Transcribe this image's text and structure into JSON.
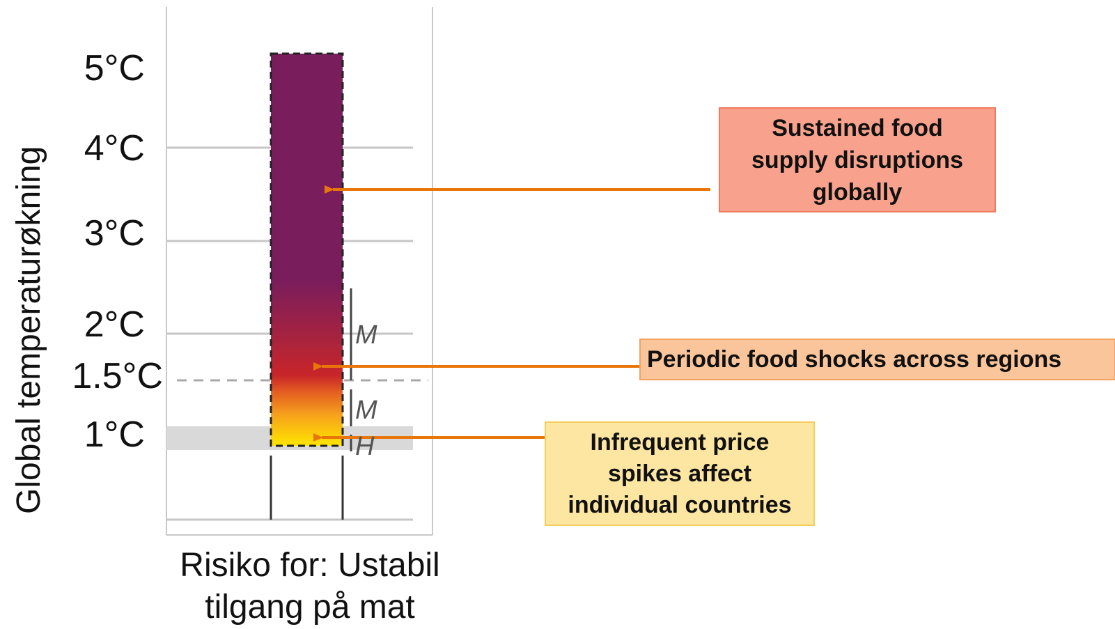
{
  "diagram": {
    "y_axis_title": "Global temperaturøkning",
    "x_caption_line1": "Risiko for: Ustabil",
    "x_caption_line2": "tilgang på mat",
    "ticks": {
      "t5": "5°C",
      "t4": "4°C",
      "t3": "3°C",
      "t2": "2°C",
      "t15": "1.5°C",
      "t1": "1°C"
    },
    "confidence": {
      "upper": "M",
      "middle": "M",
      "lower": "H"
    },
    "callouts": {
      "sustained": "Sustained food supply disruptions globally",
      "periodic": "Periodic food shocks across regions",
      "infrequent": "Infrequent price spikes affect individual countries"
    },
    "colors": {
      "very_high": "#7a1d5c",
      "high": "#c0262a",
      "moderate": "#f7941d",
      "low": "#ffe600",
      "arrow": "#e8760a",
      "box_sustained_fill": "#f8a28d",
      "box_sustained_border": "#f07a5b",
      "box_periodic_fill": "#fbc59b",
      "box_periodic_border": "#f3a25f",
      "box_infrequent_fill": "#fde6a2",
      "box_infrequent_border": "#f3cf5a"
    }
  }
}
